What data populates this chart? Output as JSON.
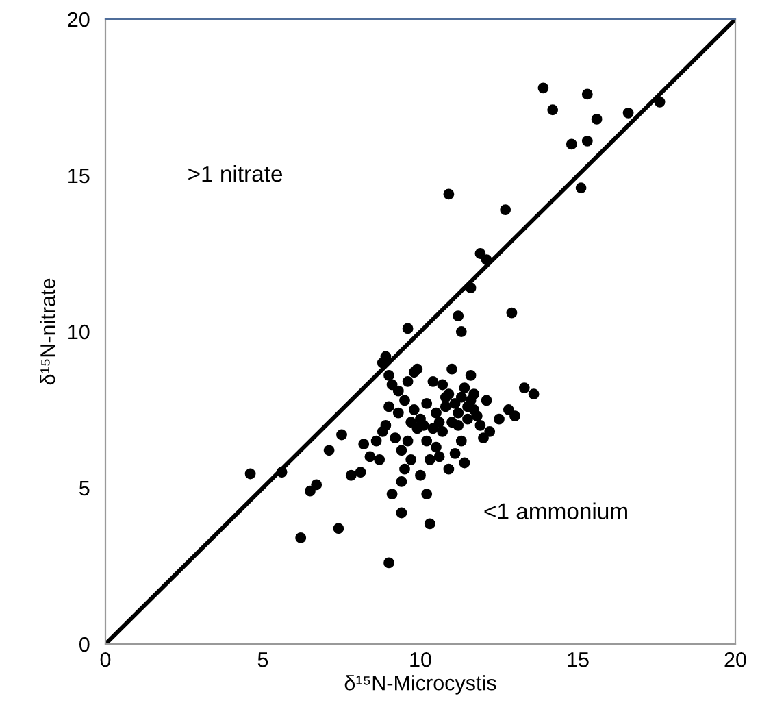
{
  "chart_data": {
    "type": "scatter",
    "xlabel": "δ¹⁵N-Microcystis",
    "ylabel": "δ¹⁵N-nitrate",
    "annotations": [
      ">1 nitrate",
      "<1 ammonium"
    ],
    "xlim": [
      0,
      20
    ],
    "ylim": [
      0,
      20
    ],
    "xticks": [
      0,
      5,
      10,
      15,
      20
    ],
    "yticks": [
      0,
      5,
      10,
      15,
      20
    ],
    "grid": false,
    "legend": false,
    "series": [
      {
        "color": "#000000",
        "marker": "circle",
        "x": [
          4.6,
          5.6,
          6.2,
          6.5,
          6.7,
          7.1,
          7.4,
          7.5,
          7.8,
          8.1,
          8.2,
          8.8,
          8.9,
          9.0,
          9.6,
          9.4,
          10.3,
          10.9,
          12.7,
          11.6,
          11.9,
          12.1,
          11.2,
          11.3,
          12.9,
          13.9,
          14.2,
          15.3,
          15.6,
          14.8,
          15.3,
          15.1,
          16.6,
          17.6,
          13.3,
          13.6,
          12.8,
          13.0,
          10.2,
          8.6,
          8.8,
          8.9,
          9.0,
          9.1,
          9.0,
          9.3,
          9.5,
          9.6,
          9.8,
          9.9,
          9.2,
          9.4,
          9.5,
          9.7,
          9.9,
          10.0,
          10.1,
          10.2,
          10.3,
          10.4,
          10.5,
          10.6,
          10.7,
          10.8,
          10.9,
          11.0,
          11.1,
          11.2,
          11.3,
          11.4,
          11.5,
          11.6,
          11.7,
          11.8,
          11.9,
          12.0,
          12.2,
          11.3,
          11.1,
          10.6,
          10.9,
          11.4,
          10.0,
          9.6,
          8.7,
          9.8,
          10.4,
          10.7,
          11.6,
          12.1,
          11.0,
          11.7,
          10.2,
          8.4,
          9.1,
          9.4,
          12.5,
          11.2,
          10.8,
          11.5,
          10.5,
          9.7,
          9.3
        ],
        "values": [
          5.45,
          5.5,
          3.4,
          4.9,
          5.1,
          6.2,
          3.7,
          6.7,
          5.4,
          5.5,
          6.4,
          9.0,
          9.2,
          2.6,
          10.1,
          4.2,
          3.85,
          14.4,
          13.9,
          11.4,
          12.5,
          12.3,
          10.5,
          10.0,
          10.6,
          17.8,
          17.1,
          17.6,
          16.8,
          16.0,
          16.1,
          14.6,
          17.0,
          17.35,
          8.2,
          8.0,
          7.5,
          7.3,
          4.8,
          6.5,
          6.8,
          7.0,
          7.6,
          8.3,
          8.6,
          7.4,
          7.8,
          8.4,
          8.7,
          8.8,
          6.6,
          6.2,
          5.6,
          5.9,
          6.9,
          7.2,
          7.0,
          6.5,
          5.9,
          6.9,
          7.4,
          7.1,
          6.8,
          7.6,
          8.0,
          8.8,
          7.7,
          7.4,
          7.9,
          8.2,
          7.6,
          7.8,
          8.0,
          7.3,
          7.0,
          6.6,
          6.8,
          6.5,
          6.1,
          6.0,
          5.6,
          5.8,
          5.4,
          6.5,
          5.9,
          7.5,
          8.4,
          8.3,
          8.6,
          7.8,
          7.1,
          7.5,
          7.7,
          6.0,
          4.8,
          5.2,
          7.2,
          7.0,
          7.9,
          7.2,
          6.3,
          7.1,
          8.1
        ]
      },
      {
        "type": "line",
        "color": "#000000",
        "marker": "none",
        "line_style": "solid",
        "x": [
          0,
          20
        ],
        "values": [
          0,
          20
        ]
      }
    ]
  }
}
